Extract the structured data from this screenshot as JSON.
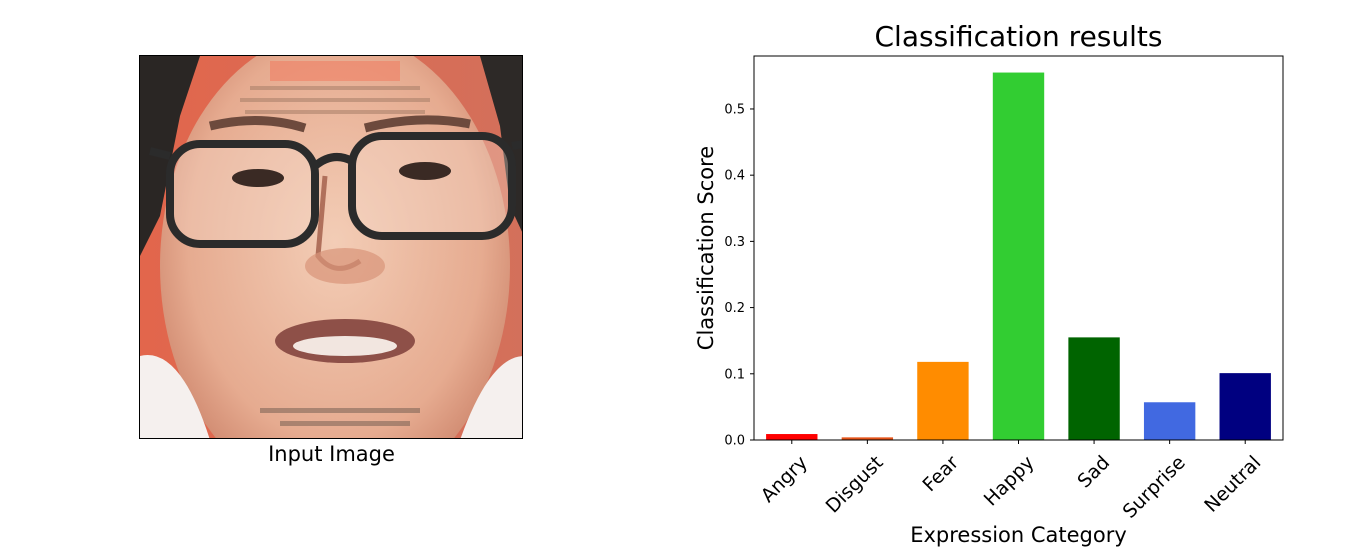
{
  "image_panel": {
    "caption": "Input Image"
  },
  "chart_data": {
    "type": "bar",
    "title": "Classification results",
    "xlabel": "Expression Category",
    "ylabel": "Classification Score",
    "categories": [
      "Angry",
      "Disgust",
      "Fear",
      "Happy",
      "Sad",
      "Surprise",
      "Neutral"
    ],
    "values": [
      0.009,
      0.004,
      0.118,
      0.555,
      0.155,
      0.057,
      0.101
    ],
    "colors": [
      "#ff0000",
      "#e5541a",
      "#ff8c00",
      "#32cd32",
      "#006400",
      "#4169e1",
      "#000080"
    ],
    "ylim": [
      0,
      0.58
    ],
    "yticks": [
      0.0,
      0.1,
      0.2,
      0.3,
      0.4,
      0.5
    ],
    "ytick_labels": [
      "0.0",
      "0.1",
      "0.2",
      "0.3",
      "0.4",
      "0.5"
    ],
    "grid": false,
    "legend": false
  }
}
